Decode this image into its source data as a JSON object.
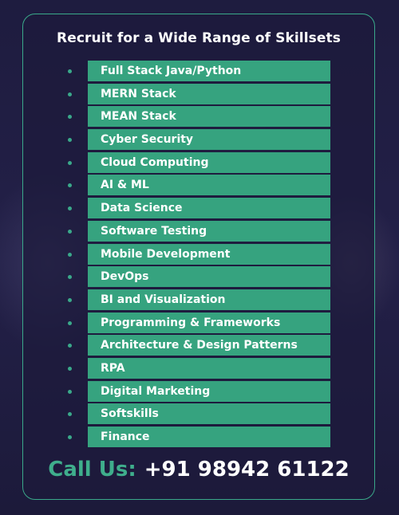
{
  "title": "Recruit for a Wide Range of Skillsets",
  "skills": [
    "Full Stack Java/Python",
    "MERN Stack",
    "MEAN Stack",
    "Cyber Security",
    "Cloud Computing",
    "AI & ML",
    "Data Science",
    "Software Testing",
    "Mobile Development",
    "DevOps",
    "BI and Visualization",
    "Programming & Frameworks",
    "Architecture & Design Patterns",
    "RPA",
    "Digital Marketing",
    "Softskills",
    "Finance"
  ],
  "contact": {
    "label": "Call Us:",
    "phone": "+91 98942 61122"
  },
  "colors": {
    "accent": "#36a37f",
    "background": "#1d1b3d",
    "text": "#ffffff"
  }
}
